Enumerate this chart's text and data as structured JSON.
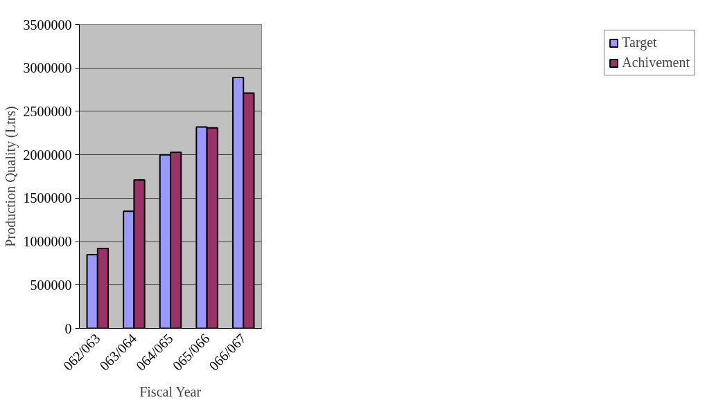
{
  "chart_data": {
    "type": "bar",
    "xlabel": "Fiscal Year",
    "ylabel": "Production Quality (Ltrs)",
    "categories": [
      "062/063",
      "063/064",
      "064/065",
      "065/066",
      "066/067"
    ],
    "series": [
      {
        "name": "Target",
        "color": "#9999ff",
        "values": [
          850000,
          1350000,
          2000000,
          2320000,
          2890000
        ]
      },
      {
        "name": "Achivement",
        "color": "#993366",
        "values": [
          920000,
          1710000,
          2030000,
          2310000,
          2710000
        ]
      }
    ],
    "ylim": [
      0,
      3500000
    ],
    "yticks": [
      0,
      500000,
      1000000,
      1500000,
      2000000,
      2500000,
      3000000,
      3500000
    ],
    "grid": "y",
    "legend": "right"
  }
}
